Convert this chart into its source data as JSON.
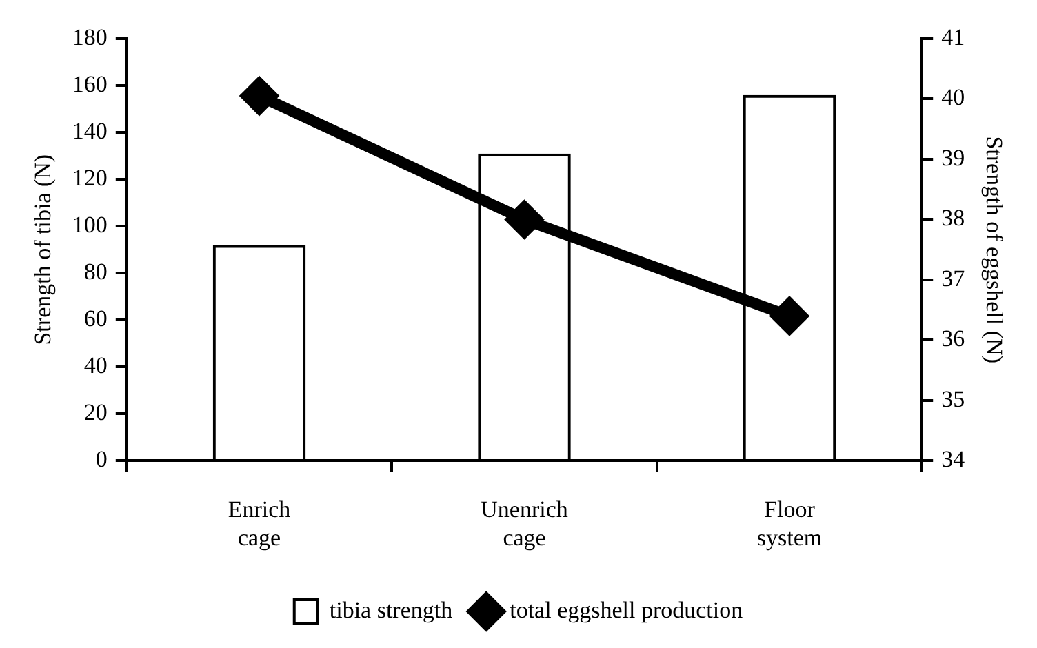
{
  "chart_data": {
    "type": "bar",
    "categories": [
      "Enrich cage",
      "Unenrich cage",
      "Floor system"
    ],
    "series": [
      {
        "name": "tibia strength",
        "color": "#000000",
        "values": [
          92,
          131,
          156
        ]
      },
      {
        "name": "total eggshell production",
        "type": "line",
        "axis": "y2",
        "color": "#000000",
        "values": [
          40.05,
          38.0,
          36.4
        ]
      }
    ],
    "ylabel": "Strength of tibia (N)",
    "y2label": "Strength of eggshell (N)",
    "ylim": [
      0,
      180
    ],
    "yticks": [
      0,
      20,
      40,
      60,
      80,
      100,
      120,
      140,
      160,
      180
    ],
    "y2lim": [
      34,
      41
    ],
    "y2ticks": [
      34,
      35,
      36,
      37,
      38,
      39,
      40,
      41
    ],
    "grid": false,
    "legend": "bottom",
    "marker": "diamond",
    "line_style": "solid"
  }
}
